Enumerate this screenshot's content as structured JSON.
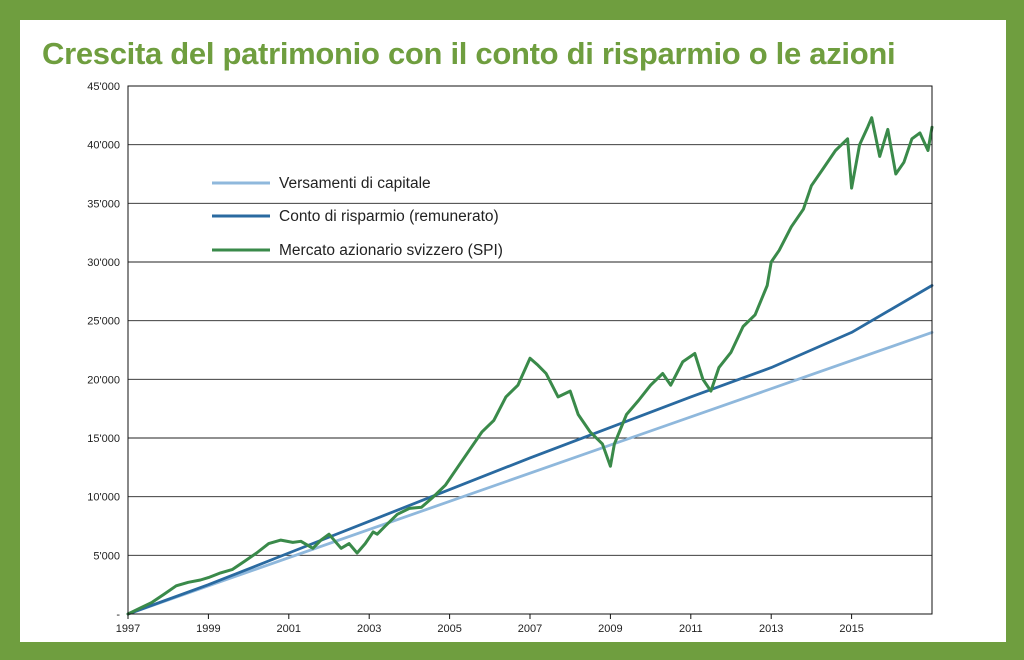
{
  "title": "Crescita del patrimonio con il conto di risparmio o le azioni",
  "colors": {
    "frame": "#6f9e3f",
    "title": "#6f9e3f",
    "versamenti": "#8fb8dc",
    "conto": "#2a6aa0",
    "spi": "#3a8a4a"
  },
  "chart_data": {
    "type": "line",
    "title": "Crescita del patrimonio con il conto di risparmio o le azioni",
    "xlabel": "",
    "ylabel": "",
    "xlim": [
      1997,
      2017
    ],
    "ylim": [
      0,
      45000
    ],
    "grid": "horizontal",
    "legend_position": "top-left",
    "x_ticks": [
      "1997",
      "1999",
      "2001",
      "2003",
      "2005",
      "2007",
      "2009",
      "2011",
      "2013",
      "2015"
    ],
    "x_tick_values": [
      1997,
      1999,
      2001,
      2003,
      2005,
      2007,
      2009,
      2011,
      2013,
      2015
    ],
    "y_ticks": [
      "-",
      "5'000",
      "10'000",
      "15'000",
      "20'000",
      "25'000",
      "30'000",
      "35'000",
      "40'000",
      "45'000"
    ],
    "y_tick_values": [
      0,
      5000,
      10000,
      15000,
      20000,
      25000,
      30000,
      35000,
      40000,
      45000
    ],
    "series": [
      {
        "name": "Versamenti di capitale",
        "color": "#8fb8dc",
        "x": [
          1997,
          2017
        ],
        "y": [
          0,
          24000
        ]
      },
      {
        "name": "Conto di risparmio (remunerato)",
        "color": "#2a6aa0",
        "x": [
          1997,
          1999,
          2001,
          2003,
          2005,
          2007,
          2009,
          2011,
          2013,
          2015,
          2017
        ],
        "y": [
          0,
          2500,
          5200,
          7900,
          10600,
          13300,
          15900,
          18500,
          21000,
          24000,
          28000
        ]
      },
      {
        "name": "Mercato azionario svizzero (SPI)",
        "color": "#3a8a4a",
        "x": [
          1997,
          1997.3,
          1997.6,
          1997.9,
          1998.2,
          1998.5,
          1998.8,
          1999.0,
          1999.3,
          1999.6,
          1999.9,
          2000.2,
          2000.5,
          2000.8,
          2001.1,
          2001.3,
          2001.6,
          2001.8,
          2002.0,
          2002.3,
          2002.5,
          2002.7,
          2002.9,
          2003.1,
          2003.2,
          2003.4,
          2003.7,
          2004.0,
          2004.3,
          2004.6,
          2004.9,
          2005.2,
          2005.5,
          2005.8,
          2006.1,
          2006.4,
          2006.7,
          2007.0,
          2007.2,
          2007.4,
          2007.7,
          2008.0,
          2008.2,
          2008.5,
          2008.8,
          2009.0,
          2009.1,
          2009.4,
          2009.7,
          2010.0,
          2010.3,
          2010.5,
          2010.8,
          2011.1,
          2011.3,
          2011.5,
          2011.7,
          2012.0,
          2012.3,
          2012.6,
          2012.9,
          2013.0,
          2013.2,
          2013.5,
          2013.8,
          2014.0,
          2014.3,
          2014.6,
          2014.9,
          2015.0,
          2015.2,
          2015.4,
          2015.5,
          2015.7,
          2015.9,
          2016.1,
          2016.3,
          2016.5,
          2016.7,
          2016.9,
          2017.0
        ],
        "y": [
          0,
          500,
          1000,
          1700,
          2400,
          2700,
          2900,
          3100,
          3500,
          3800,
          4500,
          5200,
          6000,
          6300,
          6100,
          6200,
          5600,
          6300,
          6800,
          5600,
          6000,
          5200,
          6000,
          7000,
          6800,
          7500,
          8500,
          9000,
          9100,
          10000,
          11000,
          12500,
          14000,
          15500,
          16500,
          18500,
          19500,
          21800,
          21200,
          20500,
          18500,
          19000,
          17000,
          15500,
          14500,
          12600,
          14500,
          17000,
          18200,
          19500,
          20500,
          19500,
          21500,
          22200,
          20000,
          19000,
          21000,
          22300,
          24500,
          25500,
          28000,
          30000,
          31000,
          33000,
          34500,
          36500,
          38000,
          39500,
          40500,
          36300,
          40000,
          41500,
          42300,
          39000,
          41300,
          37500,
          38500,
          40500,
          41000,
          39500,
          41500
        ]
      }
    ]
  }
}
